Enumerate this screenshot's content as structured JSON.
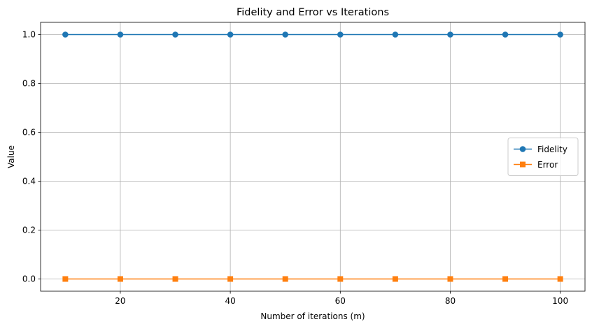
{
  "chart_data": {
    "type": "line",
    "title": "Fidelity and Error vs Iterations",
    "xlabel": "Number of iterations (m)",
    "ylabel": "Value",
    "x": [
      10,
      20,
      30,
      40,
      50,
      60,
      70,
      80,
      90,
      100
    ],
    "xlim": [
      5.5,
      104.5
    ],
    "ylim": [
      -0.05,
      1.05
    ],
    "xticks": [
      20,
      40,
      60,
      80,
      100
    ],
    "yticks": [
      0.0,
      0.2,
      0.4,
      0.6,
      0.8,
      1.0
    ],
    "xtick_labels": [
      "20",
      "40",
      "60",
      "80",
      "100"
    ],
    "ytick_labels": [
      "0.0",
      "0.2",
      "0.4",
      "0.6",
      "0.8",
      "1.0"
    ],
    "grid": true,
    "legend_position": "right",
    "series": [
      {
        "name": "Fidelity",
        "values": [
          1.0,
          1.0,
          1.0,
          1.0,
          1.0,
          1.0,
          1.0,
          1.0,
          1.0,
          1.0
        ],
        "color": "#1f77b4",
        "marker": "circle"
      },
      {
        "name": "Error",
        "values": [
          0.0,
          0.0,
          0.0,
          0.0,
          0.0,
          0.0,
          0.0,
          0.0,
          0.0,
          0.0
        ],
        "color": "#ff7f0e",
        "marker": "square"
      }
    ]
  }
}
